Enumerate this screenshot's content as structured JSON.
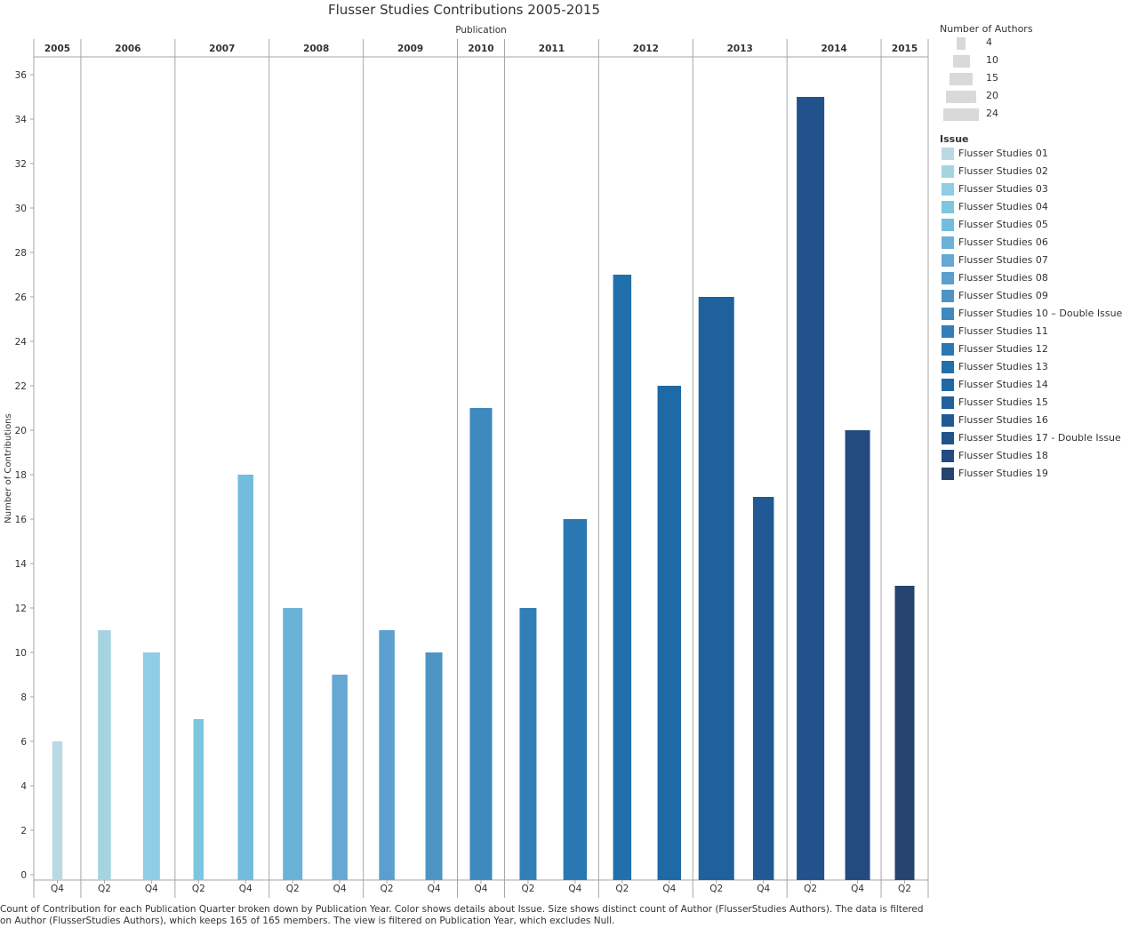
{
  "chart_data": {
    "type": "bar",
    "title": "Flusser Studies Contributions 2005-2015",
    "column_header": "Publication",
    "ylabel": "Number of Contributions",
    "ylim": [
      0,
      37
    ],
    "yticks": [
      0,
      2,
      4,
      6,
      8,
      10,
      12,
      14,
      16,
      18,
      20,
      22,
      24,
      26,
      28,
      30,
      32,
      34,
      36
    ],
    "grid": false,
    "years": [
      {
        "year": "2005",
        "quarters": [
          "Q4"
        ]
      },
      {
        "year": "2006",
        "quarters": [
          "Q2",
          "Q4"
        ]
      },
      {
        "year": "2007",
        "quarters": [
          "Q2",
          "Q4"
        ]
      },
      {
        "year": "2008",
        "quarters": [
          "Q2",
          "Q4"
        ]
      },
      {
        "year": "2009",
        "quarters": [
          "Q2",
          "Q4"
        ]
      },
      {
        "year": "2010",
        "quarters": [
          "Q4"
        ]
      },
      {
        "year": "2011",
        "quarters": [
          "Q2",
          "Q4"
        ]
      },
      {
        "year": "2012",
        "quarters": [
          "Q2",
          "Q4"
        ]
      },
      {
        "year": "2013",
        "quarters": [
          "Q2",
          "Q4"
        ]
      },
      {
        "year": "2014",
        "quarters": [
          "Q2",
          "Q4"
        ]
      },
      {
        "year": "2015",
        "quarters": [
          "Q2"
        ]
      }
    ],
    "bars": [
      {
        "year": "2005",
        "quarter": "Q4",
        "issue": "Flusser Studies 01",
        "value": 6,
        "authors": 5
      },
      {
        "year": "2006",
        "quarter": "Q2",
        "issue": "Flusser Studies 02",
        "value": 11,
        "authors": 7
      },
      {
        "year": "2006",
        "quarter": "Q4",
        "issue": "Flusser Studies 03",
        "value": 10,
        "authors": 10
      },
      {
        "year": "2007",
        "quarter": "Q2",
        "issue": "Flusser Studies 04",
        "value": 7,
        "authors": 5
      },
      {
        "year": "2007",
        "quarter": "Q4",
        "issue": "Flusser Studies 05",
        "value": 18,
        "authors": 9
      },
      {
        "year": "2008",
        "quarter": "Q2",
        "issue": "Flusser Studies 06",
        "value": 12,
        "authors": 12
      },
      {
        "year": "2008",
        "quarter": "Q4",
        "issue": "Flusser Studies 07",
        "value": 9,
        "authors": 9
      },
      {
        "year": "2009",
        "quarter": "Q2",
        "issue": "Flusser Studies 08",
        "value": 11,
        "authors": 9
      },
      {
        "year": "2009",
        "quarter": "Q4",
        "issue": "Flusser Studies 09",
        "value": 10,
        "authors": 10
      },
      {
        "year": "2010",
        "quarter": "Q4",
        "issue": "Flusser Studies 10 – Double Issue",
        "value": 21,
        "authors": 14
      },
      {
        "year": "2011",
        "quarter": "Q2",
        "issue": "Flusser Studies 11",
        "value": 12,
        "authors": 10
      },
      {
        "year": "2011",
        "quarter": "Q4",
        "issue": "Flusser Studies 12",
        "value": 16,
        "authors": 15
      },
      {
        "year": "2012",
        "quarter": "Q2",
        "issue": "Flusser Studies 13",
        "value": 27,
        "authors": 11
      },
      {
        "year": "2012",
        "quarter": "Q4",
        "issue": "Flusser Studies 14",
        "value": 22,
        "authors": 15
      },
      {
        "year": "2013",
        "quarter": "Q2",
        "issue": "Flusser Studies 15",
        "value": 26,
        "authors": 24
      },
      {
        "year": "2013",
        "quarter": "Q4",
        "issue": "Flusser Studies 16",
        "value": 17,
        "authors": 13
      },
      {
        "year": "2014",
        "quarter": "Q2",
        "issue": "Flusser Studies 17 - Double Issue",
        "value": 35,
        "authors": 18
      },
      {
        "year": "2014",
        "quarter": "Q4",
        "issue": "Flusser Studies 18",
        "value": 20,
        "authors": 16
      },
      {
        "year": "2015",
        "quarter": "Q2",
        "issue": "Flusser Studies 19",
        "value": 13,
        "authors": 12
      }
    ],
    "size_legend": {
      "title": "Number of Authors",
      "entries": [
        4,
        10,
        15,
        20,
        24
      ]
    },
    "color_legend": {
      "title": "Issue",
      "entries": [
        {
          "label": "Flusser Studies 01",
          "color": "#b9dae3"
        },
        {
          "label": "Flusser Studies 02",
          "color": "#a4d3e2"
        },
        {
          "label": "Flusser Studies 03",
          "color": "#8ecde3"
        },
        {
          "label": "Flusser Studies 04",
          "color": "#7cc6df"
        },
        {
          "label": "Flusser Studies 05",
          "color": "#72bcdd"
        },
        {
          "label": "Flusser Studies 06",
          "color": "#6bb2d8"
        },
        {
          "label": "Flusser Studies 07",
          "color": "#64a8d3"
        },
        {
          "label": "Flusser Studies 08",
          "color": "#5a9fcd"
        },
        {
          "label": "Flusser Studies 09",
          "color": "#4d94c5"
        },
        {
          "label": "Flusser Studies 10 – Double Issue",
          "color": "#3e89bd"
        },
        {
          "label": "Flusser Studies 11",
          "color": "#327fb7"
        },
        {
          "label": "Flusser Studies 12",
          "color": "#2a78b2"
        },
        {
          "label": "Flusser Studies 13",
          "color": "#2170ab"
        },
        {
          "label": "Flusser Studies 14",
          "color": "#1f69a5"
        },
        {
          "label": "Flusser Studies 15",
          "color": "#1e619d"
        },
        {
          "label": "Flusser Studies 16",
          "color": "#215995"
        },
        {
          "label": "Flusser Studies 17 - Double Issue",
          "color": "#22528b"
        },
        {
          "label": "Flusser Studies 18",
          "color": "#244b80"
        },
        {
          "label": "Flusser Studies 19",
          "color": "#26446f"
        }
      ]
    }
  },
  "caption": "Count of Contribution for each Publication Quarter broken down by Publication Year.  Color shows details about Issue.  Size shows distinct count of Author (FlusserStudies Authors). The data is filtered on Author (FlusserStudies Authors), which keeps 165 of 165 members. The view is filtered on Publication Year, which excludes Null.",
  "colors": {
    "axis": "#a6a6a6",
    "text": "#333333",
    "size_swatch": "#d9d9d9"
  }
}
